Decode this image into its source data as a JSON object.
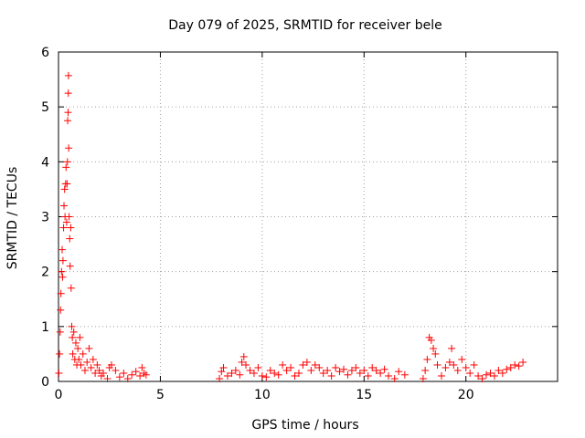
{
  "chart_data": {
    "type": "scatter",
    "title": "Day 079 of 2025, SRMTID for receiver bele",
    "xlabel": "GPS time / hours",
    "ylabel": "SRMTID / TECUs",
    "xlim": [
      0,
      24.5
    ],
    "ylim": [
      0,
      6
    ],
    "xticks": [
      0,
      5,
      10,
      15,
      20
    ],
    "yticks": [
      0,
      1,
      2,
      3,
      4,
      5,
      6
    ],
    "grid": true,
    "marker": "+",
    "series": [
      {
        "name": "SRMTID",
        "color": "#ff0000",
        "points": [
          [
            0.02,
            0.15
          ],
          [
            0.05,
            0.5
          ],
          [
            0.08,
            0.9
          ],
          [
            0.1,
            1.3
          ],
          [
            0.12,
            1.6
          ],
          [
            0.15,
            2.0
          ],
          [
            0.18,
            2.4
          ],
          [
            0.2,
            1.9
          ],
          [
            0.22,
            2.2
          ],
          [
            0.25,
            2.8
          ],
          [
            0.27,
            3.2
          ],
          [
            0.3,
            3.5
          ],
          [
            0.32,
            3.0
          ],
          [
            0.35,
            3.6
          ],
          [
            0.37,
            3.9
          ],
          [
            0.4,
            2.9
          ],
          [
            0.42,
            3.6
          ],
          [
            0.44,
            4.0
          ],
          [
            0.45,
            4.75
          ],
          [
            0.47,
            4.9
          ],
          [
            0.48,
            5.25
          ],
          [
            0.49,
            5.57
          ],
          [
            0.5,
            4.25
          ],
          [
            0.52,
            3.0
          ],
          [
            0.55,
            2.6
          ],
          [
            0.57,
            2.1
          ],
          [
            0.6,
            2.8
          ],
          [
            0.62,
            1.7
          ],
          [
            0.65,
            1.0
          ],
          [
            0.68,
            0.8
          ],
          [
            0.7,
            0.5
          ],
          [
            0.75,
            0.9
          ],
          [
            0.8,
            0.4
          ],
          [
            0.85,
            0.7
          ],
          [
            0.9,
            0.3
          ],
          [
            0.95,
            0.6
          ],
          [
            1.0,
            0.4
          ],
          [
            1.05,
            0.8
          ],
          [
            1.1,
            0.3
          ],
          [
            1.2,
            0.5
          ],
          [
            1.3,
            0.2
          ],
          [
            1.4,
            0.35
          ],
          [
            1.5,
            0.6
          ],
          [
            1.6,
            0.25
          ],
          [
            1.7,
            0.4
          ],
          [
            1.8,
            0.15
          ],
          [
            1.9,
            0.3
          ],
          [
            2.0,
            0.2
          ],
          [
            2.1,
            0.1
          ],
          [
            2.2,
            0.15
          ],
          [
            2.4,
            0.05
          ],
          [
            2.5,
            0.25
          ],
          [
            2.6,
            0.3
          ],
          [
            2.8,
            0.2
          ],
          [
            3.0,
            0.08
          ],
          [
            3.2,
            0.15
          ],
          [
            3.4,
            0.05
          ],
          [
            3.6,
            0.12
          ],
          [
            3.8,
            0.18
          ],
          [
            4.0,
            0.1
          ],
          [
            4.1,
            0.25
          ],
          [
            4.2,
            0.15
          ],
          [
            4.3,
            0.12
          ],
          [
            7.9,
            0.05
          ],
          [
            8.0,
            0.18
          ],
          [
            8.1,
            0.25
          ],
          [
            8.3,
            0.1
          ],
          [
            8.5,
            0.15
          ],
          [
            8.7,
            0.2
          ],
          [
            8.9,
            0.12
          ],
          [
            9.0,
            0.35
          ],
          [
            9.1,
            0.45
          ],
          [
            9.2,
            0.3
          ],
          [
            9.4,
            0.2
          ],
          [
            9.6,
            0.15
          ],
          [
            9.8,
            0.25
          ],
          [
            10.0,
            0.1
          ],
          [
            10.2,
            0.08
          ],
          [
            10.4,
            0.2
          ],
          [
            10.6,
            0.15
          ],
          [
            10.8,
            0.12
          ],
          [
            11.0,
            0.3
          ],
          [
            11.2,
            0.2
          ],
          [
            11.4,
            0.25
          ],
          [
            11.6,
            0.1
          ],
          [
            11.8,
            0.15
          ],
          [
            12.0,
            0.3
          ],
          [
            12.2,
            0.35
          ],
          [
            12.4,
            0.2
          ],
          [
            12.6,
            0.3
          ],
          [
            12.8,
            0.25
          ],
          [
            13.0,
            0.15
          ],
          [
            13.2,
            0.2
          ],
          [
            13.4,
            0.1
          ],
          [
            13.6,
            0.25
          ],
          [
            13.8,
            0.18
          ],
          [
            14.0,
            0.22
          ],
          [
            14.2,
            0.12
          ],
          [
            14.4,
            0.2
          ],
          [
            14.6,
            0.25
          ],
          [
            14.8,
            0.15
          ],
          [
            15.0,
            0.2
          ],
          [
            15.2,
            0.1
          ],
          [
            15.4,
            0.25
          ],
          [
            15.6,
            0.2
          ],
          [
            15.8,
            0.15
          ],
          [
            16.0,
            0.22
          ],
          [
            16.2,
            0.1
          ],
          [
            16.5,
            0.05
          ],
          [
            16.7,
            0.18
          ],
          [
            17.0,
            0.12
          ],
          [
            17.9,
            0.05
          ],
          [
            18.0,
            0.2
          ],
          [
            18.1,
            0.4
          ],
          [
            18.2,
            0.8
          ],
          [
            18.3,
            0.75
          ],
          [
            18.4,
            0.6
          ],
          [
            18.5,
            0.5
          ],
          [
            18.6,
            0.3
          ],
          [
            18.8,
            0.1
          ],
          [
            19.0,
            0.25
          ],
          [
            19.2,
            0.35
          ],
          [
            19.3,
            0.6
          ],
          [
            19.4,
            0.3
          ],
          [
            19.6,
            0.2
          ],
          [
            19.8,
            0.4
          ],
          [
            20.0,
            0.25
          ],
          [
            20.2,
            0.15
          ],
          [
            20.4,
            0.3
          ],
          [
            20.6,
            0.1
          ],
          [
            20.8,
            0.05
          ],
          [
            21.0,
            0.12
          ],
          [
            21.2,
            0.15
          ],
          [
            21.4,
            0.1
          ],
          [
            21.6,
            0.2
          ],
          [
            21.8,
            0.15
          ],
          [
            22.0,
            0.22
          ],
          [
            22.2,
            0.25
          ],
          [
            22.4,
            0.3
          ],
          [
            22.6,
            0.28
          ],
          [
            22.8,
            0.35
          ]
        ]
      }
    ]
  }
}
